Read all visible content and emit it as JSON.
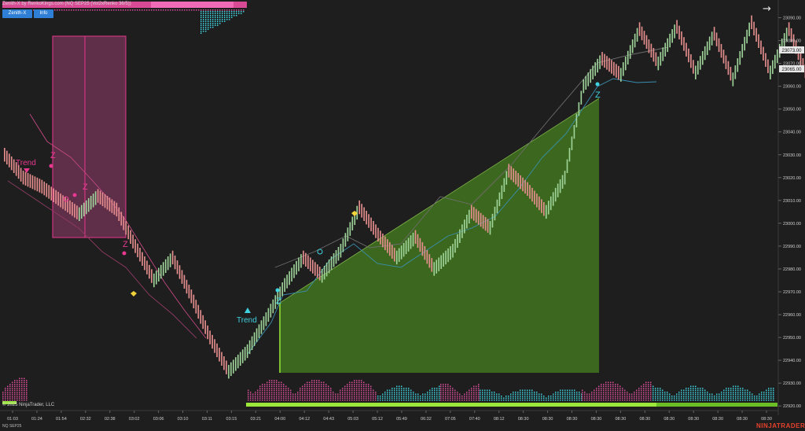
{
  "header": {
    "title": "Zenith-X by RenkoKings.com (NQ SEP25 (Vol2xRenko 36/5))",
    "buttons": [
      {
        "label": "Zenith-X"
      },
      {
        "label": "Info"
      }
    ],
    "nav_icon": "arrow-right-icon"
  },
  "footer": {
    "copyright": "© 2025 NinjaTrader, LLC",
    "instrument": "NQ SEP25",
    "brand": "NINJATRADER"
  },
  "annotations": [
    {
      "text": "Trend",
      "color": "#e8388f"
    },
    {
      "text": "Z",
      "color": "#e8388f"
    },
    {
      "text": "Z",
      "color": "#e8388f"
    },
    {
      "text": "Z",
      "color": "#e8388f"
    },
    {
      "text": "Trend",
      "color": "#3fd3e0"
    },
    {
      "text": "Z",
      "color": "#3fd3e0"
    },
    {
      "text": "Z",
      "color": "#3fd3e0"
    }
  ],
  "price_badges": [
    {
      "value": "23073.00"
    },
    {
      "value": "23065.00"
    }
  ],
  "colors": {
    "background": "#1e1e1e",
    "bull_bar": "#9fd49a",
    "bear_bar": "#e88f8f",
    "pink_zone": "#d94e9a",
    "green_zone": "#3f6f1e",
    "cyan": "#3fd3e0",
    "lime": "#9be83a"
  },
  "chart_data": {
    "type": "renko",
    "instrument": "NQ SEP25",
    "yaxis": {
      "ticks": [
        "23090.00",
        "23080.00",
        "23070.00",
        "23060.00",
        "23050.00",
        "23040.00",
        "23030.00",
        "23020.00",
        "23010.00",
        "23000.00",
        "22990.00",
        "22980.00",
        "22970.00",
        "22960.00",
        "22950.00",
        "22940.00",
        "22930.00",
        "22920.00"
      ],
      "range": [
        22918,
        23095
      ]
    },
    "xaxis": {
      "ticks": [
        "01:03",
        "01:24",
        "01:54",
        "02:32",
        "02:38",
        "03:02",
        "03:06",
        "03:10",
        "03:11",
        "03:15",
        "03:21",
        "04:00",
        "04:12",
        "04:43",
        "05:03",
        "05:12",
        "05:49",
        "06:32",
        "07:05",
        "07:40",
        "08:12",
        "08:30",
        "08:30",
        "08:30",
        "08:30",
        "08:30",
        "08:30",
        "08:30",
        "08:30",
        "08:30",
        "08:30",
        "08:30"
      ]
    },
    "price_path": [
      23030,
      23020,
      23016,
      23010,
      23004,
      23012,
      23006,
      22990,
      22975,
      22985,
      22968,
      22950,
      22935,
      22944,
      22958,
      22973,
      22985,
      22977,
      22988,
      23007,
      22995,
      22985,
      22994,
      22980,
      22988,
      23005,
      22998,
      23023,
      23015,
      23005,
      23020,
      23060,
      23072,
      23065,
      23085,
      23070,
      23086,
      23066,
      23083,
      23063,
      23088,
      23066,
      23085,
      23064,
      23087
    ]
  }
}
